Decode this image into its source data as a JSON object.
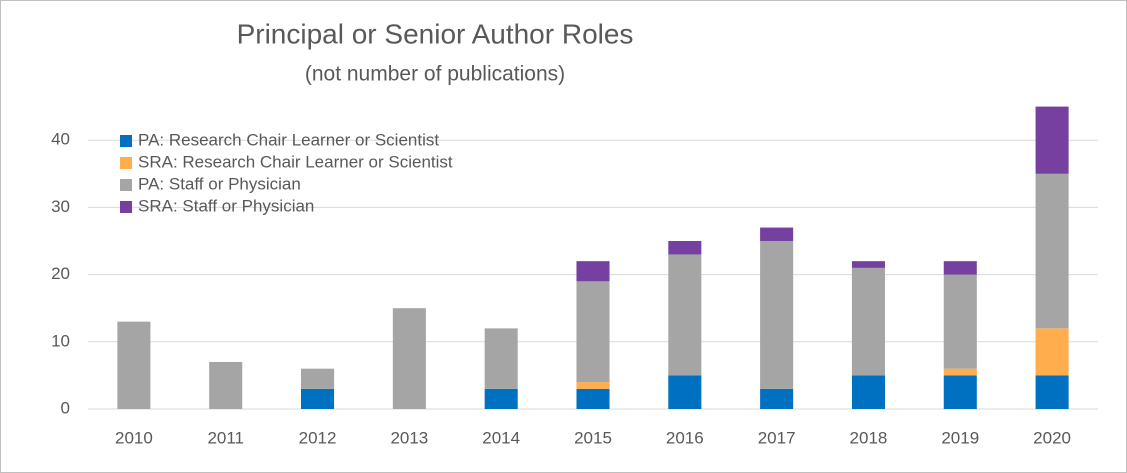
{
  "chart_data": {
    "type": "stacked_bar",
    "title": "Principal or Senior Author Roles",
    "subtitle": "(not number of publications)",
    "categories": [
      "2010",
      "2011",
      "2012",
      "2013",
      "2014",
      "2015",
      "2016",
      "2017",
      "2018",
      "2019",
      "2020"
    ],
    "series": [
      {
        "name": "PA: Research Chair Learner or Scientist",
        "color": "#0070c0",
        "values": [
          0,
          0,
          3,
          0,
          3,
          3,
          5,
          3,
          5,
          5,
          5
        ]
      },
      {
        "name": "SRA: Research Chair Learner or Scientist",
        "color": "#ffad4d",
        "values": [
          0,
          0,
          0,
          0,
          0,
          1,
          0,
          0,
          0,
          1,
          7
        ]
      },
      {
        "name": "PA: Staff or Physician",
        "color": "#a5a5a5",
        "values": [
          13,
          7,
          3,
          15,
          9,
          15,
          18,
          22,
          16,
          14,
          23
        ]
      },
      {
        "name": "SRA: Staff or Physician",
        "color": "#7540a0",
        "values": [
          0,
          0,
          0,
          0,
          0,
          3,
          2,
          2,
          1,
          2,
          10
        ]
      }
    ],
    "ylim": [
      0,
      50
    ],
    "yticks": [
      0,
      10,
      20,
      30,
      40
    ],
    "grid": true,
    "legend": "upper left"
  }
}
